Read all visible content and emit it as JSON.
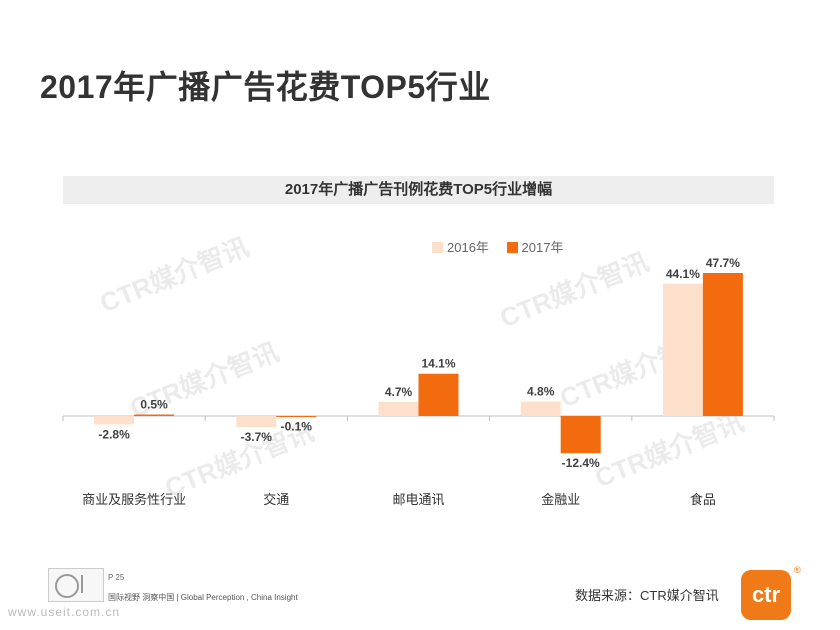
{
  "page": {
    "title": "2017年广播广告花费TOP5行业",
    "page_number": "P 25",
    "slogan": "国际视野 洞察中国 | Global Perception , China Insight",
    "source": "数据来源：CTR媒介智讯",
    "watermark_text": "CTR媒介智讯",
    "logo_text": "ctr",
    "logo_reg": "®",
    "site_watermark": "www.useit.com.cn"
  },
  "colors": {
    "series_2016": "#fde0cb",
    "series_2017": "#f26b0f",
    "axis": "#bfbfbf",
    "label": "#404040"
  },
  "chart_data": {
    "type": "bar",
    "title": "2017年广播广告刊例花费TOP5行业增幅",
    "categories": [
      "商业及服务性行业",
      "交通",
      "邮电通讯",
      "金融业",
      "食品"
    ],
    "series": [
      {
        "name": "2016年",
        "values": [
          -2.8,
          -3.7,
          4.7,
          4.8,
          44.1
        ],
        "labels": [
          "-2.8%",
          "-3.7%",
          "4.7%",
          "4.8%",
          "44.1%"
        ]
      },
      {
        "name": "2017年",
        "values": [
          0.5,
          -0.1,
          14.1,
          -12.4,
          47.7
        ],
        "labels": [
          "0.5%",
          "-0.1%",
          "14.1%",
          "-12.4%",
          "47.7%"
        ]
      }
    ],
    "legend_position": "top-right",
    "grid": false,
    "ylim": [
      -15,
      50
    ]
  }
}
